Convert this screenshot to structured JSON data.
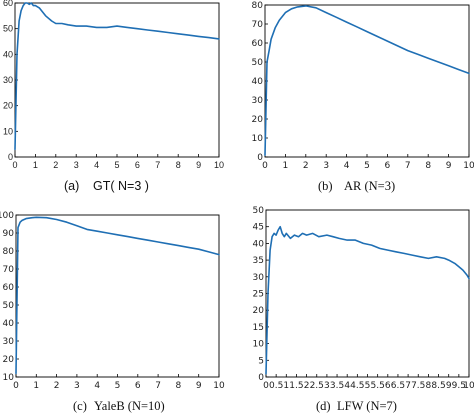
{
  "colors": {
    "line": "#1f6fb4",
    "axis": "#000000",
    "text": "#111111"
  },
  "chart_data": [
    {
      "type": "line",
      "caption_label": "(a)",
      "caption_text": "GT( N=3 )",
      "xlim": [
        0,
        10
      ],
      "ylim": [
        0,
        60
      ],
      "xticks": [
        "0",
        "1",
        "2",
        "3",
        "4",
        "5",
        "6",
        "7",
        "8",
        "9",
        "10"
      ],
      "yticks": [
        "0",
        "10",
        "20",
        "30",
        "40",
        "50",
        "60"
      ],
      "series": [
        {
          "x": [
            0,
            0.1,
            0.2,
            0.3,
            0.4,
            0.5,
            0.6,
            0.7,
            0.8,
            0.9,
            1.0,
            1.2,
            1.5,
            1.8,
            2.0,
            2.3,
            2.6,
            3.0,
            3.5,
            4.0,
            4.5,
            5.0,
            5.5,
            6.0,
            6.5,
            7.0,
            7.5,
            8.0,
            8.5,
            9.0,
            9.5,
            10.0
          ],
          "y": [
            3,
            40,
            53,
            57,
            59,
            60,
            60,
            59.5,
            60,
            59,
            59,
            58,
            55,
            53,
            52,
            52,
            51.5,
            51,
            51,
            50.5,
            50.5,
            51,
            50.5,
            50,
            49.5,
            49,
            48.5,
            48,
            47.5,
            47,
            46.5,
            46
          ]
        }
      ]
    },
    {
      "type": "line",
      "caption_label": "(b)",
      "caption_text": "AR (N=3)",
      "xlim": [
        0,
        10
      ],
      "ylim": [
        0,
        80
      ],
      "xticks": [
        "0",
        "1",
        "2",
        "3",
        "4",
        "5",
        "6",
        "7",
        "8",
        "9",
        "10"
      ],
      "yticks": [
        "0",
        "10",
        "20",
        "30",
        "40",
        "50",
        "60",
        "70",
        "80"
      ],
      "series": [
        {
          "x": [
            0,
            0.1,
            0.2,
            0.3,
            0.5,
            0.7,
            1.0,
            1.3,
            1.6,
            2.0,
            2.5,
            3.0,
            3.5,
            4.0,
            4.5,
            5.0,
            5.5,
            6.0,
            6.5,
            7.0,
            7.5,
            8.0,
            8.5,
            9.0,
            9.5,
            10.0
          ],
          "y": [
            1,
            50,
            56,
            62,
            68,
            72,
            76,
            78,
            79,
            79.5,
            78.5,
            76,
            73.5,
            71,
            68.5,
            66,
            63.5,
            61,
            58.5,
            56,
            54,
            52,
            50,
            48,
            46,
            44
          ]
        }
      ]
    },
    {
      "type": "line",
      "caption_label": "(c)",
      "caption_text": "YaleB (N=10)",
      "xlim": [
        0,
        10
      ],
      "ylim": [
        10,
        100
      ],
      "xticks": [
        "0",
        "1",
        "2",
        "3",
        "4",
        "5",
        "6",
        "7",
        "8",
        "9",
        "10"
      ],
      "yticks": [
        "10",
        "20",
        "30",
        "40",
        "50",
        "60",
        "70",
        "80",
        "90",
        "100"
      ],
      "series": [
        {
          "x": [
            0,
            0.1,
            0.2,
            0.3,
            0.5,
            0.8,
            1.0,
            1.5,
            2.0,
            2.5,
            3.0,
            3.5,
            4.0,
            4.5,
            5.0,
            5.5,
            6.0,
            6.5,
            7.0,
            7.5,
            8.0,
            8.5,
            9.0,
            9.5,
            10.0
          ],
          "y": [
            12,
            93,
            96,
            97,
            98,
            98.5,
            98.7,
            98.5,
            97.5,
            96,
            94,
            92,
            91,
            90,
            89,
            88,
            87,
            86,
            85,
            84,
            83,
            82,
            81,
            79.5,
            78
          ]
        }
      ]
    },
    {
      "type": "line",
      "caption_label": "(d)",
      "caption_text": "LFW (N=7)",
      "xlim": [
        0,
        10
      ],
      "ylim": [
        0,
        50
      ],
      "xticks": [
        "0",
        "0.5",
        "1",
        "1.5",
        "2",
        "2.5",
        "3",
        "3.5",
        "4",
        "4.5",
        "5",
        "5.5",
        "6",
        "6.5",
        "7",
        "7.5",
        "8",
        "8.5",
        "9",
        "9.5",
        "10"
      ],
      "yticks": [
        "0",
        "5",
        "10",
        "15",
        "20",
        "25",
        "30",
        "35",
        "40",
        "45",
        "50"
      ],
      "series": [
        {
          "x": [
            0,
            0.1,
            0.2,
            0.3,
            0.4,
            0.5,
            0.6,
            0.7,
            0.8,
            0.9,
            1.0,
            1.2,
            1.4,
            1.6,
            1.8,
            2.0,
            2.3,
            2.6,
            3.0,
            3.3,
            3.6,
            4.0,
            4.4,
            4.8,
            5.2,
            5.6,
            6.0,
            6.4,
            6.8,
            7.2,
            7.6,
            8.0,
            8.4,
            8.8,
            9.0,
            9.3,
            9.5,
            9.7,
            9.9,
            10.0
          ],
          "y": [
            1,
            25,
            38,
            42,
            43,
            42.5,
            44,
            45,
            43,
            42,
            43,
            41.5,
            42.5,
            42,
            43,
            42.5,
            43,
            42,
            42.5,
            42,
            41.5,
            41,
            41,
            40,
            39.5,
            38.5,
            38,
            37.5,
            37,
            36.5,
            36,
            35.5,
            36,
            35.5,
            35,
            34,
            33,
            32,
            30.5,
            29.5
          ]
        }
      ]
    }
  ]
}
